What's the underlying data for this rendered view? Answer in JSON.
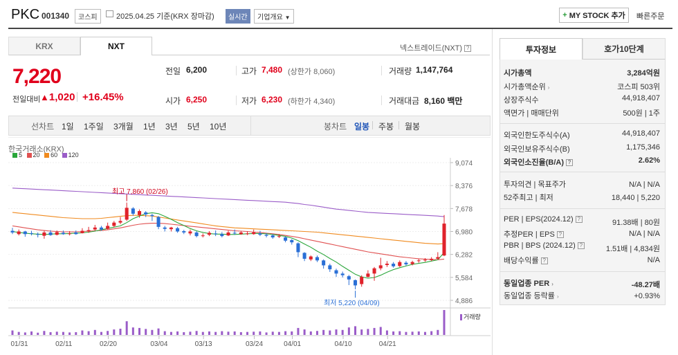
{
  "header": {
    "name": "PKC",
    "code": "001340",
    "market": "코스피",
    "date": "2025.04.25",
    "basis": "기준(KRX 장마감)",
    "realtime": "실시간",
    "overview": "기업개요",
    "mystock": "MY STOCK 추가",
    "quick_order": "빠른주문"
  },
  "tabs": {
    "krx": "KRX",
    "nxt": "NXT",
    "nxt_label": "넥스트레이드(NXT)"
  },
  "quote": {
    "price": "7,220",
    "change_label": "전일대비",
    "change_amount": "1,020",
    "change_pct": "+16.45%",
    "prev_label": "전일",
    "prev": "6,200",
    "high_label": "고가",
    "high": "7,480",
    "upper_limit": "(상한가 8,060)",
    "volume_label": "거래량",
    "volume": "1,147,764",
    "open_label": "시가",
    "open": "6,250",
    "low_label": "저가",
    "low": "6,230",
    "lower_limit": "(하한가 4,340)",
    "amount_label": "거래대금",
    "amount": "8,160 백만"
  },
  "periods": {
    "line_label": "선차트",
    "items": [
      "1일",
      "1주일",
      "3개월",
      "1년",
      "3년",
      "5년",
      "10년"
    ],
    "candle_label": "봉차트",
    "candle_items": [
      "일봉",
      "주봉",
      "월봉"
    ],
    "active_candle": "일봉"
  },
  "chart_labels": {
    "source": "한국거래소(KRX)",
    "ma": [
      "5",
      "20",
      "60",
      "120"
    ],
    "ma_colors": [
      "#2aa63a",
      "#e05050",
      "#f08a1e",
      "#9a5cc8"
    ],
    "max_label": "최고 7,860 (02/26)",
    "min_label": "최저 5,220 (04/09)",
    "volume_legend": "거래량"
  },
  "chart_data": {
    "type": "candlestick",
    "y_ticks": [
      "9,074",
      "8,376",
      "7,678",
      "6,980",
      "6,282",
      "5,584",
      "4,886"
    ],
    "ylim": [
      4886,
      9074
    ],
    "x_ticks": [
      "01/31",
      "02/11",
      "02/20",
      "03/04",
      "03/13",
      "03/24",
      "04/01",
      "04/10",
      "04/21"
    ],
    "candles": [
      [
        7000,
        6950,
        7090,
        6900
      ],
      [
        6900,
        6980,
        7040,
        6860
      ],
      [
        6980,
        6900,
        7000,
        6820
      ],
      [
        6930,
        6920,
        7000,
        6860
      ],
      [
        6900,
        6880,
        6950,
        6800
      ],
      [
        6850,
        6950,
        7000,
        6760
      ],
      [
        6950,
        6870,
        7020,
        6850
      ],
      [
        6880,
        6960,
        7010,
        6860
      ],
      [
        6940,
        6900,
        7010,
        6880
      ],
      [
        6900,
        6920,
        6990,
        6860
      ],
      [
        6950,
        6900,
        7010,
        6880
      ],
      [
        6930,
        7000,
        7080,
        6920
      ],
      [
        6980,
        7020,
        7120,
        6940
      ],
      [
        7040,
        7100,
        7180,
        7000
      ],
      [
        7100,
        7040,
        7150,
        7000
      ],
      [
        7060,
        7150,
        7250,
        7040
      ],
      [
        7150,
        7250,
        7300,
        7110
      ],
      [
        7250,
        7300,
        7420,
        7200
      ],
      [
        7340,
        7700,
        7860,
        7300
      ],
      [
        7680,
        7520,
        7720,
        7460
      ],
      [
        7480,
        7600,
        7650,
        7400
      ],
      [
        7560,
        7500,
        7600,
        7420
      ],
      [
        7480,
        7450,
        7520,
        7300
      ],
      [
        7420,
        7120,
        7450,
        7050
      ],
      [
        7100,
        7060,
        7150,
        6980
      ],
      [
        7050,
        7100,
        7120,
        6980
      ],
      [
        7080,
        6980,
        7120,
        6940
      ],
      [
        6990,
        6950,
        7030,
        6900
      ],
      [
        6920,
        6980,
        7040,
        6860
      ],
      [
        6950,
        6840,
        6990,
        6800
      ],
      [
        6850,
        6860,
        6920,
        6800
      ],
      [
        6880,
        6940,
        6990,
        6840
      ],
      [
        6920,
        6900,
        7010,
        6840
      ],
      [
        6900,
        6840,
        6960,
        6800
      ],
      [
        6860,
        6950,
        7000,
        6840
      ],
      [
        6940,
        6920,
        7040,
        6880
      ],
      [
        6900,
        6950,
        7000,
        6880
      ],
      [
        6920,
        6920,
        6980,
        6870
      ],
      [
        6900,
        6950,
        7040,
        6880
      ],
      [
        6920,
        6880,
        7000,
        6840
      ],
      [
        6880,
        6850,
        6930,
        6800
      ],
      [
        6860,
        6800,
        6900,
        6760
      ],
      [
        6820,
        6840,
        6900,
        6780
      ],
      [
        6800,
        6700,
        6830,
        6650
      ],
      [
        6720,
        6650,
        6750,
        6580
      ],
      [
        6620,
        6350,
        6650,
        6200
      ],
      [
        6330,
        6150,
        6350,
        6080
      ],
      [
        6130,
        6220,
        6250,
        6080
      ],
      [
        6200,
        6100,
        6250,
        6050
      ],
      [
        6100,
        5950,
        6130,
        5850
      ],
      [
        5950,
        5830,
        6000,
        5750
      ],
      [
        5800,
        5700,
        5850,
        5600
      ],
      [
        5700,
        5650,
        5760,
        5580
      ],
      [
        5620,
        5520,
        5660,
        5350
      ],
      [
        5500,
        5340,
        5520,
        5220
      ],
      [
        5380,
        5600,
        5650,
        5300
      ],
      [
        5600,
        5700,
        5800,
        5580
      ],
      [
        5700,
        5860,
        5900,
        5480
      ],
      [
        5860,
        5950,
        6180,
        5800
      ],
      [
        5960,
        6000,
        6080,
        5900
      ],
      [
        6000,
        5920,
        6050,
        5880
      ],
      [
        5930,
        6050,
        6100,
        5900
      ],
      [
        6030,
        5980,
        6080,
        5940
      ],
      [
        5990,
        6050,
        6090,
        5950
      ],
      [
        6080,
        6100,
        6150,
        6030
      ],
      [
        6100,
        6120,
        6170,
        6060
      ],
      [
        6110,
        6150,
        6200,
        6080
      ],
      [
        6150,
        6200,
        6350,
        6120
      ],
      [
        6250,
        7220,
        7480,
        6230
      ]
    ],
    "volumes": [
      18,
      12,
      10,
      14,
      9,
      16,
      11,
      13,
      12,
      10,
      11,
      18,
      15,
      20,
      12,
      16,
      22,
      25,
      55,
      30,
      28,
      24,
      20,
      26,
      15,
      12,
      14,
      11,
      13,
      16,
      12,
      14,
      12,
      15,
      13,
      14,
      11,
      12,
      13,
      14,
      10,
      13,
      12,
      15,
      14,
      28,
      22,
      14,
      16,
      20,
      18,
      22,
      20,
      30,
      35,
      22,
      24,
      28,
      32,
      18,
      14,
      15,
      12,
      13,
      14,
      12,
      15,
      20,
      100
    ],
    "ma120": [
      8300,
      8290,
      8280,
      8270,
      8260,
      8250,
      8240,
      8230,
      8220,
      8210,
      8200,
      8190,
      8180,
      8170,
      8160,
      8150,
      8140,
      8130,
      8120,
      8110,
      8100,
      8090,
      8080,
      8070,
      8060,
      8050,
      8040,
      8030,
      8020,
      8010,
      8000,
      7990,
      7980,
      7970,
      7960,
      7950,
      7940,
      7930,
      7920,
      7910,
      7900,
      7890,
      7880,
      7870,
      7850,
      7830,
      7800,
      7780,
      7750,
      7720,
      7690,
      7660,
      7640,
      7620,
      7600,
      7580,
      7560,
      7550,
      7540,
      7530,
      7520,
      7510,
      7500,
      7490,
      7480,
      7470,
      7460,
      7450,
      7430
    ],
    "ma60": [
      7560,
      7540,
      7520,
      7500,
      7480,
      7460,
      7440,
      7420,
      7400,
      7390,
      7380,
      7370,
      7370,
      7370,
      7380,
      7400,
      7420,
      7440,
      7460,
      7470,
      7470,
      7460,
      7450,
      7420,
      7390,
      7360,
      7330,
      7300,
      7270,
      7240,
      7210,
      7180,
      7150,
      7130,
      7110,
      7090,
      7080,
      7070,
      7060,
      7050,
      7040,
      7030,
      7020,
      7010,
      7000,
      6990,
      6980,
      6970,
      6960,
      6940,
      6920,
      6900,
      6880,
      6860,
      6840,
      6820,
      6800,
      6780,
      6760,
      6740,
      6720,
      6700,
      6680,
      6660,
      6640,
      6620,
      6610,
      6600,
      6610
    ],
    "ma20": [
      7150,
      7120,
      7090,
      7060,
      7030,
      7010,
      6990,
      6980,
      6970,
      6970,
      6970,
      6980,
      6990,
      7000,
      7010,
      7030,
      7060,
      7090,
      7130,
      7170,
      7200,
      7220,
      7230,
      7230,
      7220,
      7200,
      7180,
      7160,
      7140,
      7120,
      7100,
      7080,
      7060,
      7040,
      7020,
      7000,
      6990,
      6980,
      6960,
      6950,
      6930,
      6910,
      6890,
      6860,
      6830,
      6800,
      6760,
      6720,
      6680,
      6640,
      6600,
      6560,
      6520,
      6480,
      6440,
      6400,
      6360,
      6330,
      6300,
      6270,
      6240,
      6210,
      6190,
      6170,
      6150,
      6140,
      6130,
      6120,
      6140
    ],
    "ma5": [
      6980,
      6950,
      6930,
      6910,
      6900,
      6890,
      6900,
      6910,
      6910,
      6920,
      6930,
      6940,
      6960,
      6990,
      7030,
      7070,
      7110,
      7150,
      7250,
      7370,
      7450,
      7520,
      7550,
      7520,
      7440,
      7350,
      7250,
      7160,
      7070,
      7000,
      6950,
      6920,
      6900,
      6900,
      6890,
      6890,
      6900,
      6910,
      6920,
      6920,
      6910,
      6890,
      6860,
      6830,
      6780,
      6700,
      6600,
      6500,
      6380,
      6280,
      6160,
      6050,
      5920,
      5800,
      5680,
      5600,
      5560,
      5580,
      5650,
      5740,
      5820,
      5880,
      5930,
      5980,
      6010,
      6040,
      6080,
      6120,
      6340
    ]
  },
  "right": {
    "tab_info": "투자정보",
    "tab_order": "호가10단계",
    "mcap_label": "시가총액",
    "mcap": "3,284억원",
    "mcap_rank_label": "시가총액순위",
    "mcap_rank": "코스피 503위",
    "shares_label": "상장주식수",
    "shares": "44,918,407",
    "par_label": "액면가 | 매매단위",
    "par": "500원 | 1주",
    "foreign_limit_label": "외국인한도주식수(A)",
    "foreign_limit": "44,918,407",
    "foreign_hold_label": "외국인보유주식수(B)",
    "foreign_hold": "1,175,346",
    "foreign_ratio_label": "외국인소진율(B/A)",
    "foreign_ratio": "2.62%",
    "opinion_label": "투자의견 | 목표주가",
    "opinion": "N/A | N/A",
    "w52_label": "52주최고 | 최저",
    "w52": "18,440 | 5,220",
    "per_label": "PER | EPS(2024.12)",
    "per": "91.38배 | 80원",
    "est_per_label": "추정PER | EPS",
    "est_per": "N/A | N/A",
    "pbr_label": "PBR | BPS (2024.12)",
    "pbr": "1.51배 | 4,834원",
    "div_label": "배당수익률",
    "div": "N/A",
    "peer_per_label": "동일업종 PER",
    "peer_per": "-48.27배",
    "peer_rate_label": "동일업종 등락률",
    "peer_rate": "+0.93%"
  }
}
